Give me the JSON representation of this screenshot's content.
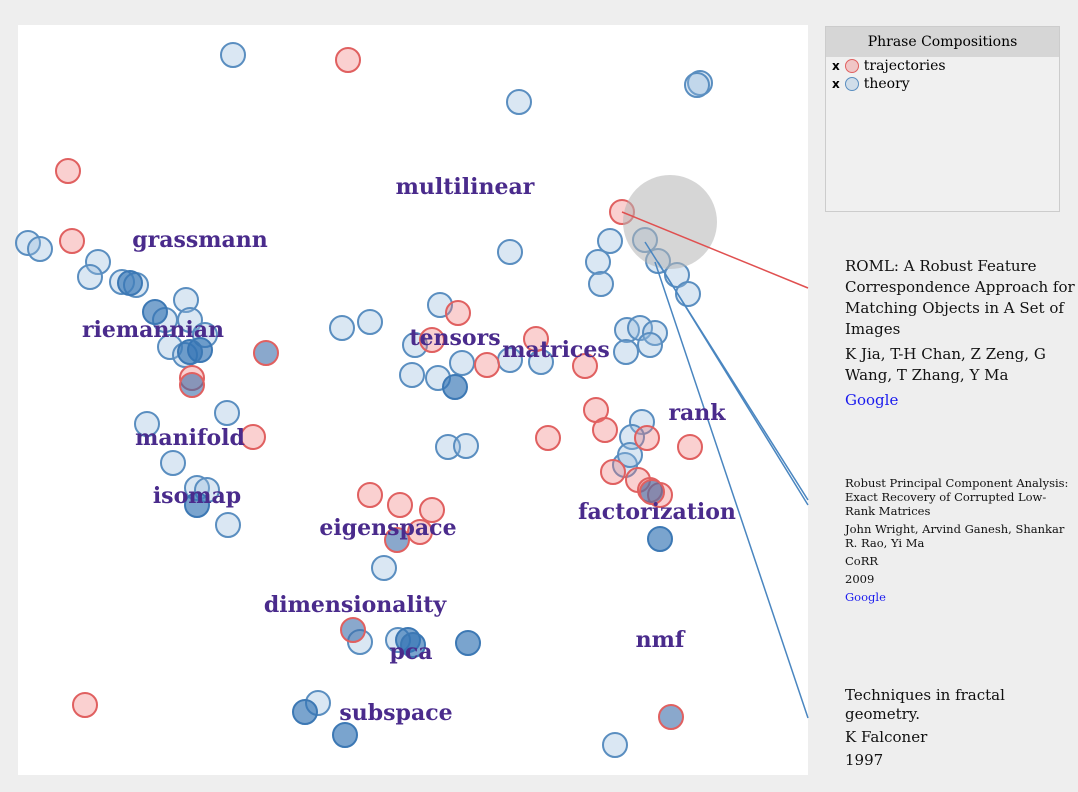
{
  "legend": {
    "title": "Phrase Compositions",
    "items": [
      {
        "remove": "x",
        "label": "trajectories"
      },
      {
        "remove": "x",
        "label": "theory"
      }
    ]
  },
  "terms": [
    "multilinear",
    "grassmann",
    "riemannian",
    "tensors",
    "matrices",
    "rank",
    "manifold",
    "isomap",
    "eigenspace",
    "factorization",
    "dimensionality",
    "pca",
    "nmf",
    "subspace"
  ],
  "papers": [
    {
      "title": "ROML: A Robust Feature Correspondence Approach for Matching Objects in A Set of Images",
      "authors": "K Jia, T-H Chan, Z Zeng, G Wang, T Zhang, Y Ma",
      "link": "Google"
    },
    {
      "title": "Robust Principal Component Analysis: Exact Recovery of Corrupted Low-Rank Matrices",
      "authors": "John Wright, Arvind Ganesh, Shankar R. Rao, Yi Ma",
      "venue": "CoRR",
      "year": "2009",
      "link": "Google"
    },
    {
      "title": "Techniques in fractal geometry.",
      "authors": "K Falconer",
      "year": "1997"
    }
  ]
}
